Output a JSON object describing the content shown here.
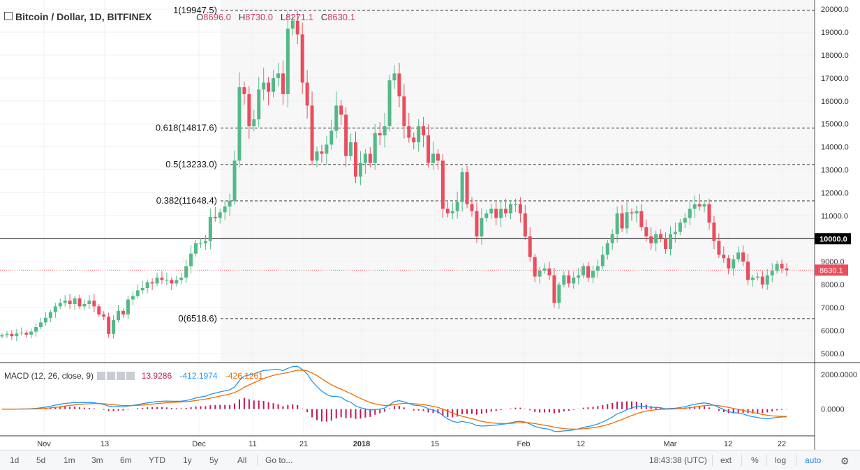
{
  "header": {
    "symbol": "Bitcoin / Dollar, 1D, BITFINEX",
    "open_label": "O",
    "open": "8696.0",
    "high_label": "H",
    "high": "8730.0",
    "low_label": "L",
    "low": "8271.1",
    "close_label": "C",
    "close": "8630.1"
  },
  "macd": {
    "label": "MACD (12, 26, close, 9)",
    "hist_value": "13.9286",
    "macd_value": "-412.1974",
    "signal_value": "-426.1261",
    "axis_ticks": [
      {
        "v": 2000,
        "label": "2000.0000"
      },
      {
        "v": 0,
        "label": "0.0000"
      }
    ]
  },
  "toolbar": {
    "ranges": [
      "1d",
      "5d",
      "1m",
      "3m",
      "6m",
      "YTD",
      "1y",
      "5y",
      "All"
    ],
    "goto": "Go to...",
    "time": "18:43:38 (UTC)",
    "ext": "ext",
    "percent": "%",
    "log": "log",
    "auto": "auto"
  },
  "colors": {
    "up": "#53b987",
    "down": "#eb4d5c",
    "grid": "#eef0f3",
    "macd": "#2196f3",
    "signal": "#ef6c00",
    "hist": "#c2185b"
  },
  "chart_data": {
    "type": "candlestick",
    "x_ticks": [
      "Nov",
      "13",
      "Dec",
      "11",
      "21",
      "2018",
      "15",
      "Feb",
      "12",
      "Mar",
      "12",
      "22"
    ],
    "y_ticks": [
      5000,
      6000,
      7000,
      8000,
      9000,
      10000,
      11000,
      12000,
      13000,
      14000,
      15000,
      16000,
      17000,
      18000,
      19000,
      20000
    ],
    "y_tick_labels": [
      "5000.0",
      "6000.0",
      "7000.0",
      "8000.0",
      "9000.0",
      "10000.0",
      "11000.0",
      "12000.0",
      "13000.0",
      "14000.0",
      "15000.0",
      "16000.0",
      "17000.0",
      "18000.0",
      "19000.0",
      "20000.0"
    ],
    "ylim": [
      4600,
      20400
    ],
    "horizontal_line": {
      "value": 10000,
      "label": "10000.0"
    },
    "last_price": {
      "value": 8630.1,
      "label": "8630.1"
    },
    "fibonacci": [
      {
        "label": "1(19947.5)",
        "value": 19947.5
      },
      {
        "label": "0.618(14817.6)",
        "value": 14817.6
      },
      {
        "label": "0.5(13233.0)",
        "value": 13233.0
      },
      {
        "label": "0.382(11648.4)",
        "value": 11648.4
      },
      {
        "label": "0(6518.6)",
        "value": 6518.6
      }
    ],
    "closes": [
      5800,
      5850,
      5750,
      5870,
      5900,
      5820,
      5950,
      6150,
      6350,
      6550,
      6800,
      7050,
      7200,
      7300,
      7150,
      7400,
      7050,
      7150,
      7300,
      7050,
      6700,
      6600,
      5850,
      6450,
      6850,
      6700,
      7350,
      7500,
      7750,
      7850,
      8100,
      8050,
      8300,
      8200,
      8200,
      8050,
      8200,
      8300,
      8800,
      9350,
      9800,
      9800,
      9900,
      10950,
      10900,
      11150,
      11400,
      11650,
      13400,
      16600,
      16300,
      14900,
      15200,
      16500,
      16800,
      16400,
      17000,
      17200,
      16300,
      19150,
      19500,
      18900,
      16800,
      15800,
      13400,
      13800,
      13700,
      14100,
      14700,
      15800,
      15400,
      13600,
      14200,
      12700,
      13300,
      13700,
      13300,
      14600,
      14500,
      14900,
      16900,
      17200,
      16200,
      14900,
      14400,
      14200,
      14900,
      14500,
      13300,
      13700,
      13400,
      11300,
      11100,
      11200,
      11600,
      12900,
      11500,
      11200,
      10100,
      10900,
      11100,
      11300,
      10900,
      11300,
      11100,
      11500,
      11500,
      11100,
      10100,
      9200,
      8350,
      8600,
      8700,
      8400,
      7200,
      8000,
      8400,
      8050,
      8300,
      8400,
      8800,
      8300,
      8600,
      8800,
      9300,
      9800,
      10200,
      11100,
      10450,
      11150,
      11100,
      11200,
      10500,
      10100,
      9800,
      10200,
      10000,
      9550,
      10200,
      10300,
      10700,
      10900,
      11300,
      11500,
      11400,
      11500,
      10700,
      9900,
      9300,
      9150,
      8700,
      9100,
      9400,
      9000,
      8200,
      8300,
      8350,
      8000,
      8400,
      8600,
      8900,
      8700,
      8630
    ]
  }
}
